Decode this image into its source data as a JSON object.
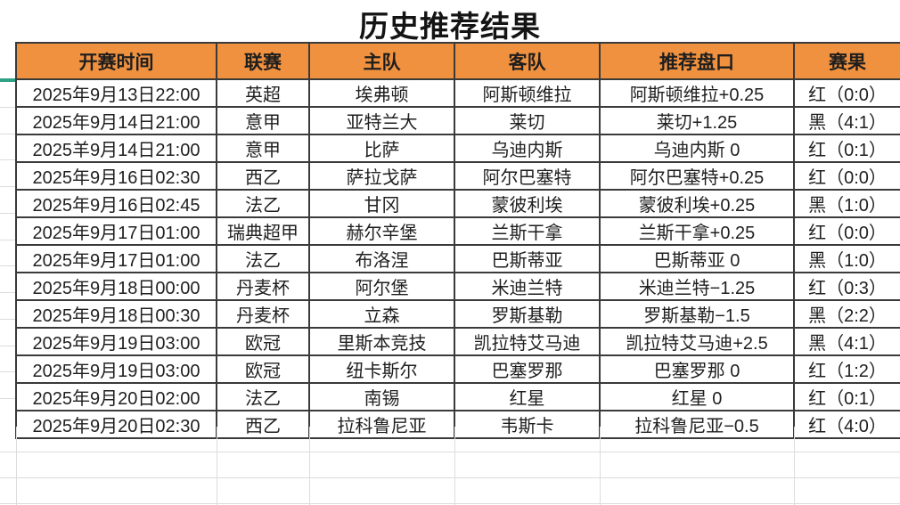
{
  "title": "历史推荐结果",
  "colors": {
    "header_bg": "#F0913F",
    "result_red": "#A9352E",
    "result_black": "#1F1F1F",
    "green_marker": "#2FA286",
    "grid_dark": "#3A3A3A",
    "grid_faint": "#DCDCDC"
  },
  "table": {
    "headers": [
      "开赛时间",
      "联赛",
      "主队",
      "客队",
      "推荐盘口",
      "赛果"
    ],
    "rows": [
      {
        "time": "2025年9月13日22:00",
        "league": "英超",
        "home": "埃弗顿",
        "away": "阿斯顿维拉",
        "handicap": "阿斯顿维拉+0.25",
        "result": "红（0:0）",
        "result_type": "red"
      },
      {
        "time": "2025年9月14日21:00",
        "league": "意甲",
        "home": "亚特兰大",
        "away": "莱切",
        "handicap": "莱切+1.25",
        "result": "黑（4:1）",
        "result_type": "black"
      },
      {
        "time": "2025羊9月14日21:00",
        "league": "意甲",
        "home": "比萨",
        "away": "乌迪内斯",
        "handicap": "乌迪内斯 0",
        "result": "红（0:1）",
        "result_type": "red"
      },
      {
        "time": "2025年9月16日02:30",
        "league": "西乙",
        "home": "萨拉戈萨",
        "away": "阿尔巴塞特",
        "handicap": "阿尔巴塞特+0.25",
        "result": "红（0:0）",
        "result_type": "red"
      },
      {
        "time": "2025年9月16日02:45",
        "league": "法乙",
        "home": "甘冈",
        "away": "蒙彼利埃",
        "handicap": "蒙彼利埃+0.25",
        "result": "黑（1:0）",
        "result_type": "black"
      },
      {
        "time": "2025年9月17日01:00",
        "league": "瑞典超甲",
        "home": "赫尔辛堡",
        "away": "兰斯干拿",
        "handicap": "兰斯干拿+0.25",
        "result": "红（0:0）",
        "result_type": "red"
      },
      {
        "time": "2025年9月17日01:00",
        "league": "法乙",
        "home": "布洛涅",
        "away": "巴斯蒂亚",
        "handicap": "巴斯蒂亚 0",
        "result": "黑（1:0）",
        "result_type": "black"
      },
      {
        "time": "2025年9月18日00:00",
        "league": "丹麦杯",
        "home": "阿尔堡",
        "away": "米迪兰特",
        "handicap": "米迪兰特−1.25",
        "result": "红（0:3）",
        "result_type": "red"
      },
      {
        "time": "2025年9月18日00:30",
        "league": "丹麦杯",
        "home": "立森",
        "away": "罗斯基勒",
        "handicap": "罗斯基勒−1.5",
        "result": "黑（2:2）",
        "result_type": "black"
      },
      {
        "time": "2025年9月19日03:00",
        "league": "欧冠",
        "home": "里斯本竞技",
        "away": "凯拉特艾马迪",
        "handicap": "凯拉特艾马迪+2.5",
        "result": "黑（4:1）",
        "result_type": "black"
      },
      {
        "time": "2025年9月19日03:00",
        "league": "欧冠",
        "home": "纽卡斯尔",
        "away": "巴塞罗那",
        "handicap": "巴塞罗那 0",
        "result": "红（1:2）",
        "result_type": "red"
      },
      {
        "time": "2025年9月20日02:00",
        "league": "法乙",
        "home": "南锡",
        "away": "红星",
        "handicap": "红星 0",
        "result": "红（0:1）",
        "result_type": "red"
      },
      {
        "time": "2025年9月20日02:30",
        "league": "西乙",
        "home": "拉科鲁尼亚",
        "away": "韦斯卡",
        "handicap": "拉科鲁尼亚−0.5",
        "result": "红（4:0）",
        "result_type": "red"
      }
    ]
  }
}
